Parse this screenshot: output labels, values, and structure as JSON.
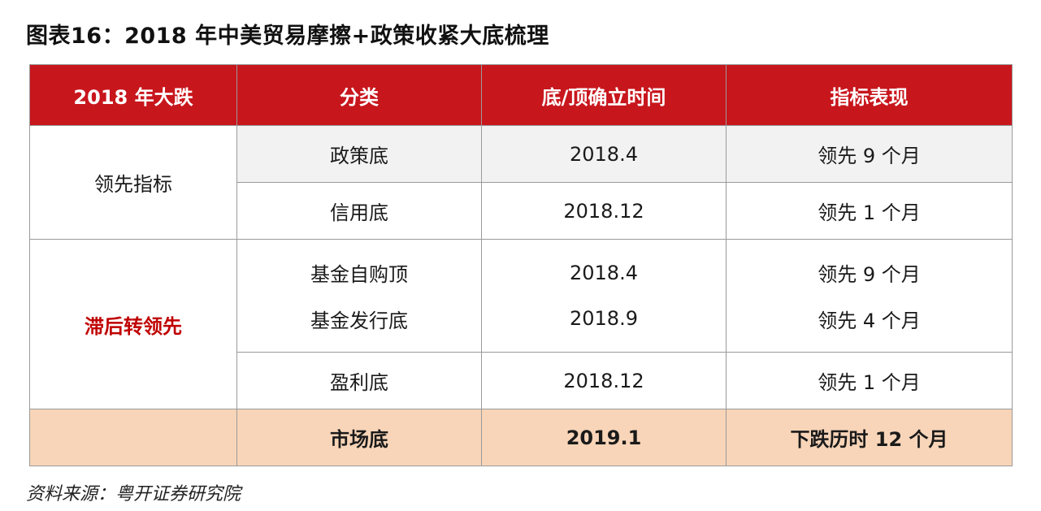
{
  "title": "图表16：2018 年中美贸易摩擦+政策收紧大底梳理",
  "table": {
    "headers": [
      "2018 年大跌",
      "分类",
      "底/顶确立时间",
      "指标表现"
    ],
    "group1": {
      "label": "领先指标",
      "rows": [
        {
          "category": "政策底",
          "time": "2018.4",
          "perf": "领先 9 个月"
        },
        {
          "category": "信用底",
          "time": "2018.12",
          "perf": "领先 1 个月"
        }
      ]
    },
    "group2": {
      "label": "滞后转领先",
      "row_a": {
        "categories": [
          "基金自购顶",
          "基金发行底"
        ],
        "times": [
          "2018.4",
          "2018.9"
        ],
        "perfs": [
          "领先 9 个月",
          "领先 4 个月"
        ]
      },
      "row_b": {
        "category": "盈利底",
        "time": "2018.12",
        "perf": "领先 1 个月"
      }
    },
    "bottom": {
      "label": "",
      "category": "市场底",
      "time": "2019.1",
      "perf": "下跌历时 12 个月"
    }
  },
  "source": "资料来源：粤开证券研究院",
  "colors": {
    "header_bg": "#c8161d",
    "highlight_text": "#c00000",
    "bottom_row_bg": "#f8d5b8",
    "shaded_cell_bg": "#f2f2f2"
  }
}
